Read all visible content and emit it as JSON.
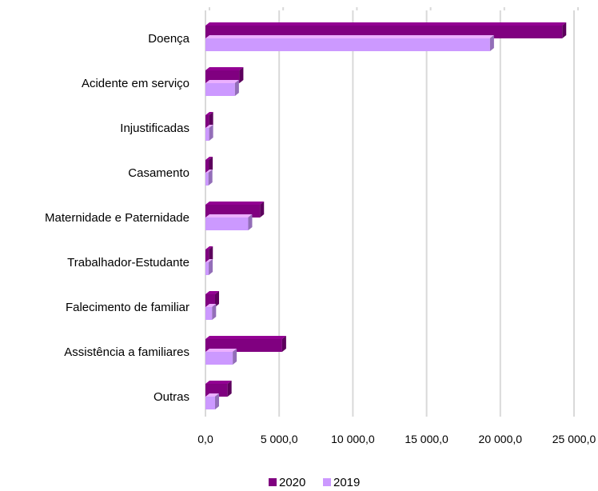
{
  "chart_data": {
    "type": "bar",
    "orientation": "horizontal",
    "style": "3d-clustered",
    "categories": [
      "Doença",
      "Acidente em serviço",
      "Injustificadas",
      "Casamento",
      "Maternidade e Paternidade",
      "Trabalhador-Estudante",
      "Falecimento de familiar",
      "Assistência a familiares",
      "Outras"
    ],
    "series": [
      {
        "name": "2020",
        "color": "#800080",
        "values": [
          24200,
          2300,
          250,
          220,
          3700,
          230,
          650,
          5200,
          1500
        ]
      },
      {
        "name": "2019",
        "color": "#cc99ff",
        "values": [
          19300,
          2000,
          250,
          200,
          2900,
          220,
          450,
          1850,
          650
        ]
      }
    ],
    "xlim": [
      0,
      25000
    ],
    "x_ticks": [
      0,
      5000,
      10000,
      15000,
      20000,
      25000
    ],
    "x_tick_labels": [
      "0,0",
      "5 000,0",
      "10 000,0",
      "15 000,0",
      "20 000,0",
      "25 000,0"
    ],
    "grid": true,
    "legend_position": "bottom"
  }
}
